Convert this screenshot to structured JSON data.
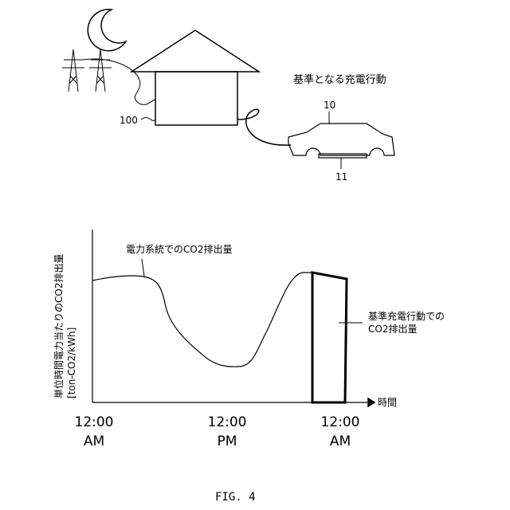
{
  "top_diagram": {
    "title": "基準となる充電行動",
    "house_ref": "100",
    "vehicle_ref": "10",
    "battery_ref": "11"
  },
  "chart": {
    "ylabel_line1": "単位時間電力当たりのCO2排出量",
    "ylabel_line2": "[ton-CO2/kWh]",
    "xlabel": "時間",
    "grid_label": "電力系統でのCO2排出量",
    "charge_label_line1": "基準充電行動での",
    "charge_label_line2": "CO2排出量",
    "ticks": [
      {
        "time": "12:00",
        "period": "AM"
      },
      {
        "time": "12:00",
        "period": "PM"
      },
      {
        "time": "12:00",
        "period": "AM"
      }
    ]
  },
  "figure_label": "FIG. 4"
}
